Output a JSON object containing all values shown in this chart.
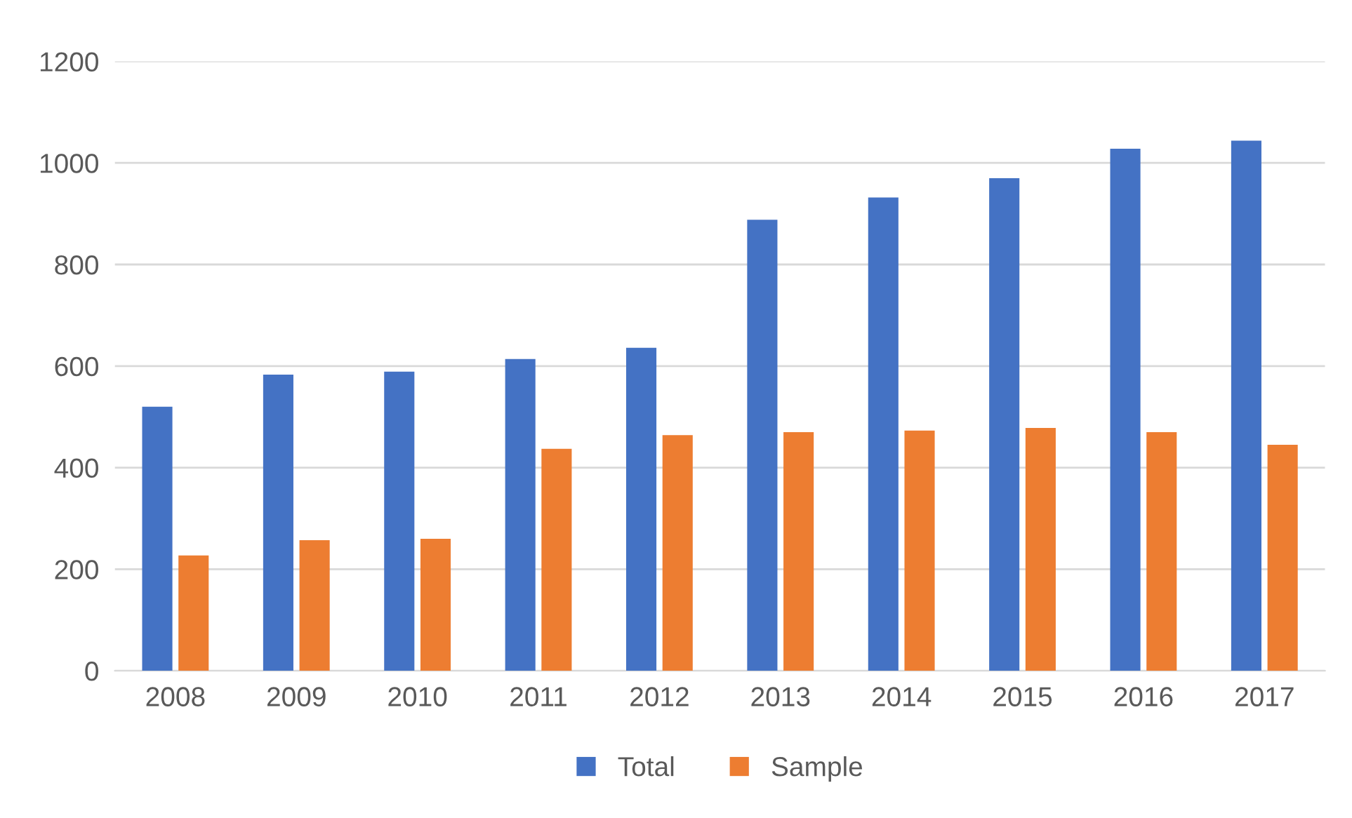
{
  "chart_data": {
    "type": "bar",
    "categories": [
      "2008",
      "2009",
      "2010",
      "2011",
      "2012",
      "2013",
      "2014",
      "2015",
      "2016",
      "2017"
    ],
    "series": [
      {
        "name": "Total",
        "color": "#4472c4",
        "values": [
          520,
          583,
          589,
          614,
          636,
          888,
          932,
          970,
          1028,
          1044
        ]
      },
      {
        "name": "Sample",
        "color": "#ed7d31",
        "values": [
          227,
          257,
          260,
          437,
          464,
          470,
          473,
          478,
          470,
          445
        ]
      }
    ],
    "ylim": [
      0,
      1200
    ],
    "yticks": [
      0,
      200,
      400,
      600,
      800,
      1000,
      1200
    ],
    "grid": "y",
    "legend": "bottom"
  }
}
